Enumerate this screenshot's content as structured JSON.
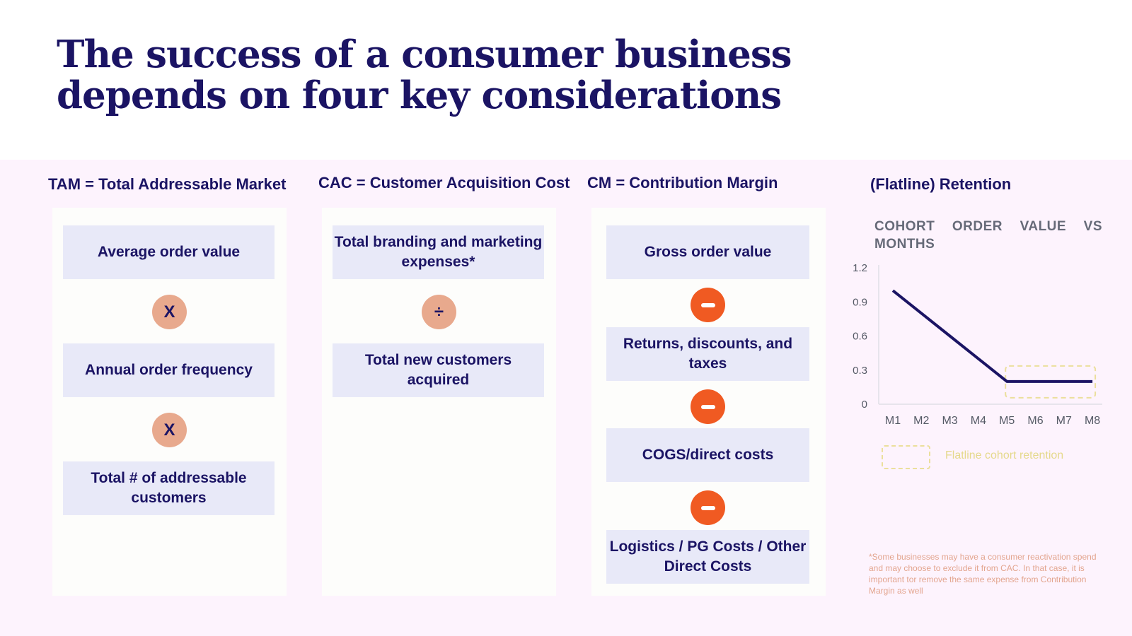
{
  "title": "The success of a consumer business depends on four key considerations",
  "columns": {
    "tam": {
      "heading": "TAM = Total Addressable Market",
      "items": [
        "Average order value",
        "Annual order frequency",
        "Total # of addressable customers"
      ],
      "operators": [
        "X",
        "X"
      ]
    },
    "cac": {
      "heading": "CAC = Customer Acquisition Cost",
      "items": [
        "Total branding and marketing expenses*",
        "Total new customers acquired"
      ],
      "operators": [
        "÷"
      ]
    },
    "cm": {
      "heading": "CM = Contribution Margin",
      "items": [
        "Gross order value",
        "Returns, discounts, and taxes",
        "COGS/direct costs",
        "Logistics / PG Costs / Other Direct Costs"
      ],
      "operators": [
        "minus-icon",
        "minus-icon",
        "minus-icon"
      ]
    }
  },
  "retention": {
    "heading": "(Flatline) Retention",
    "subtitle": "COHORT ORDER VALUE VS MONTHS",
    "legend_label": "Flatline cohort retention",
    "footnote": "*Some businesses may have a consumer reactivation spend and may choose to exclude it from CAC. In that case, it is important tor remove the same expense from Contribution Margin as well"
  },
  "chart_data": {
    "type": "line",
    "title": "COHORT ORDER VALUE VS MONTHS",
    "categories": [
      "M1",
      "M2",
      "M3",
      "M4",
      "M5",
      "M6",
      "M7",
      "M8"
    ],
    "series": [
      {
        "name": "Cohort order value",
        "values": [
          1.0,
          0.8,
          0.6,
          0.4,
          0.2,
          0.2,
          0.2,
          0.2
        ]
      }
    ],
    "yticks": [
      "1.2",
      "0.9",
      "0.6",
      "0.3",
      "0"
    ],
    "ylim": [
      0,
      1.2
    ],
    "highlight": {
      "label": "Flatline cohort retention",
      "from": "M5",
      "to": "M8"
    }
  },
  "colors": {
    "navy": "#1b1464",
    "band": "#fdf3fd",
    "box": "#e8e9f8",
    "multiply": "#e8a98d",
    "minus": "#f05a22",
    "flatline": "#ebdf9c"
  }
}
